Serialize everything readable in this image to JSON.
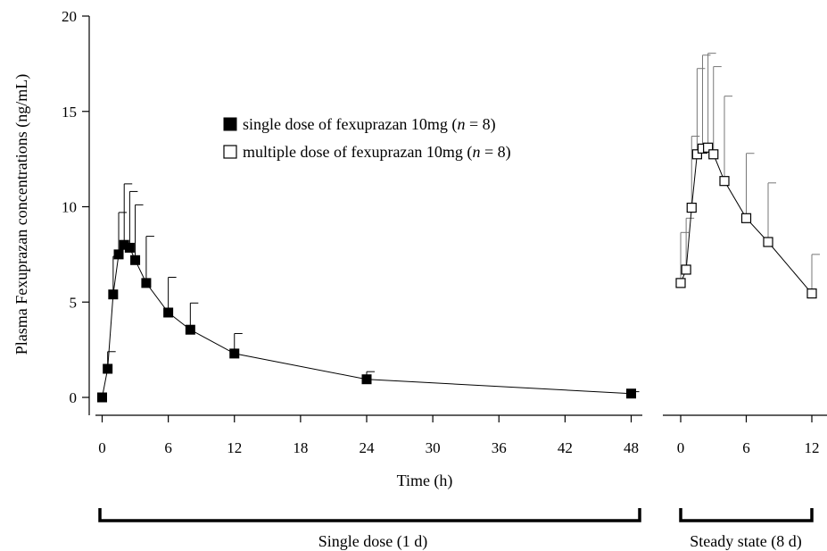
{
  "chart_data": {
    "type": "line",
    "ylabel": "Plasma Fexuprazan concentrations (ng/mL)",
    "xlabel": "Time (h)",
    "ylim": [
      0,
      20
    ],
    "yticks": [
      "0",
      "5",
      "10",
      "15",
      "20"
    ],
    "grid": false,
    "legend_placement": "top-center",
    "panels": [
      {
        "name": "Single dose (1 d)",
        "xlim": [
          0,
          48
        ],
        "xticks": [
          "0",
          "6",
          "12",
          "18",
          "24",
          "30",
          "36",
          "42",
          "48"
        ]
      },
      {
        "name": "Steady state (8 d)",
        "xlim": [
          0,
          12
        ],
        "xticks": [
          "0",
          "6",
          "12"
        ]
      }
    ],
    "series": [
      {
        "name": "single dose of fexuprazan 10mg (n = 8)",
        "legend": {
          "pre": "single dose of fexuprazan 10mg (",
          "n": "n",
          "post": " = 8)"
        },
        "marker": "filled-square",
        "color": "#000000",
        "panel": 0,
        "x": [
          0,
          0.5,
          1,
          1.5,
          2,
          2.5,
          3,
          4,
          6,
          8,
          12,
          24,
          48
        ],
        "y": [
          0,
          1.5,
          5.4,
          7.5,
          8.0,
          7.85,
          7.2,
          6.0,
          4.45,
          3.55,
          2.3,
          0.95,
          0.2
        ],
        "err_upper": [
          0,
          2.4,
          7.4,
          9.7,
          11.2,
          10.8,
          10.1,
          8.45,
          6.3,
          4.95,
          3.35,
          1.35,
          0.3
        ]
      },
      {
        "name": "multiple dose of fexuprazan 10mg (n = 8)",
        "legend": {
          "pre": "multiple dose of fexuprazan 10mg (",
          "n": "n",
          "post": " = 8)"
        },
        "marker": "open-square",
        "color": "#000000",
        "panel": 1,
        "x": [
          0,
          0.5,
          1,
          1.5,
          2,
          2.5,
          3,
          4,
          6,
          8,
          12
        ],
        "y": [
          6.0,
          6.7,
          9.95,
          12.75,
          13.05,
          13.1,
          12.75,
          11.35,
          9.4,
          8.15,
          5.45
        ],
        "err_upper": [
          8.65,
          9.4,
          13.7,
          17.25,
          17.95,
          18.05,
          17.35,
          15.8,
          12.8,
          11.25,
          7.5
        ]
      }
    ]
  }
}
